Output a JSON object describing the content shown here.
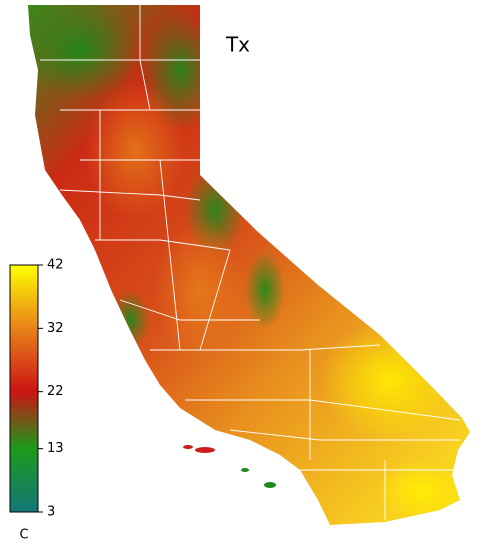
{
  "map": {
    "title": "Tx",
    "colorbar": {
      "label": "C",
      "range": [
        3,
        42
      ],
      "ticks": [
        3,
        13,
        22,
        32,
        42
      ],
      "colors": [
        "#137777",
        "#1c9a1c",
        "#cc1414",
        "#e8821a",
        "#ffff00"
      ]
    }
  }
}
